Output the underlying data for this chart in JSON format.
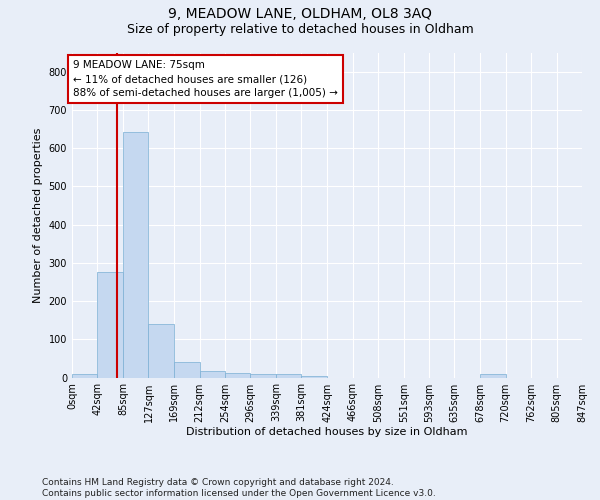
{
  "title": "9, MEADOW LANE, OLDHAM, OL8 3AQ",
  "subtitle": "Size of property relative to detached houses in Oldham",
  "xlabel": "Distribution of detached houses by size in Oldham",
  "ylabel": "Number of detached properties",
  "bar_color": "#c5d8f0",
  "bar_edge_color": "#7aafd4",
  "vline_color": "#cc0000",
  "vline_x": 75,
  "annotation_text": "9 MEADOW LANE: 75sqm\n← 11% of detached houses are smaller (126)\n88% of semi-detached houses are larger (1,005) →",
  "annotation_box_color": "#ffffff",
  "annotation_box_edge": "#cc0000",
  "bin_edges": [
    0,
    42,
    85,
    127,
    169,
    212,
    254,
    296,
    339,
    381,
    424,
    466,
    508,
    551,
    593,
    635,
    678,
    720,
    762,
    805,
    847
  ],
  "bar_heights": [
    8,
    275,
    641,
    140,
    40,
    18,
    12,
    10,
    8,
    5,
    0,
    0,
    0,
    0,
    0,
    0,
    8,
    0,
    0,
    0
  ],
  "ylim": [
    0,
    850
  ],
  "yticks": [
    0,
    100,
    200,
    300,
    400,
    500,
    600,
    700,
    800
  ],
  "background_color": "#e8eef8",
  "footer_text": "Contains HM Land Registry data © Crown copyright and database right 2024.\nContains public sector information licensed under the Open Government Licence v3.0.",
  "title_fontsize": 10,
  "subtitle_fontsize": 9,
  "tick_fontsize": 7,
  "footer_fontsize": 6.5,
  "ylabel_fontsize": 8,
  "xlabel_fontsize": 8
}
